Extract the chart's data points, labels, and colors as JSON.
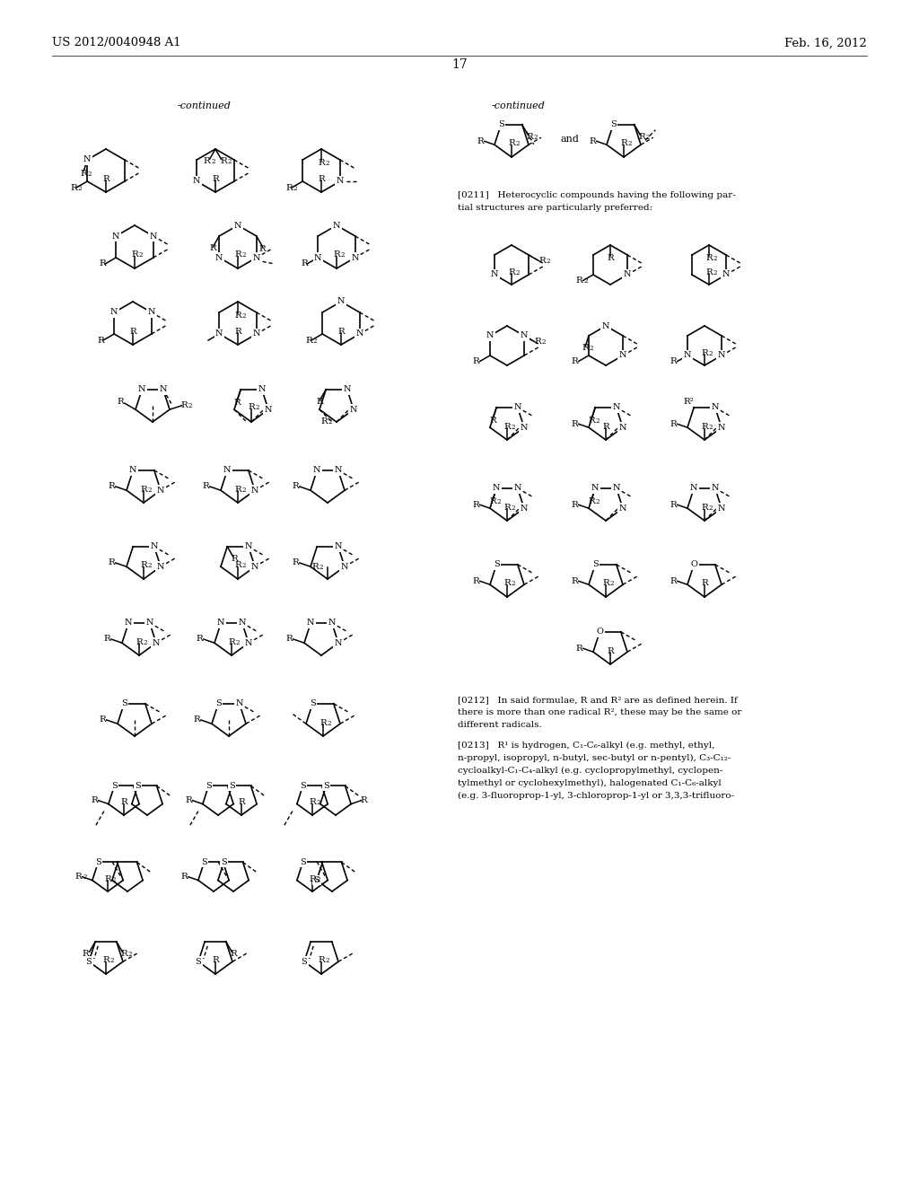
{
  "page_number": "17",
  "patent_number": "US 2012/0040948 A1",
  "patent_date": "Feb. 16, 2012",
  "background_color": "#ffffff",
  "text_color": "#000000",
  "figsize": [
    10.24,
    13.2
  ],
  "dpi": 100
}
